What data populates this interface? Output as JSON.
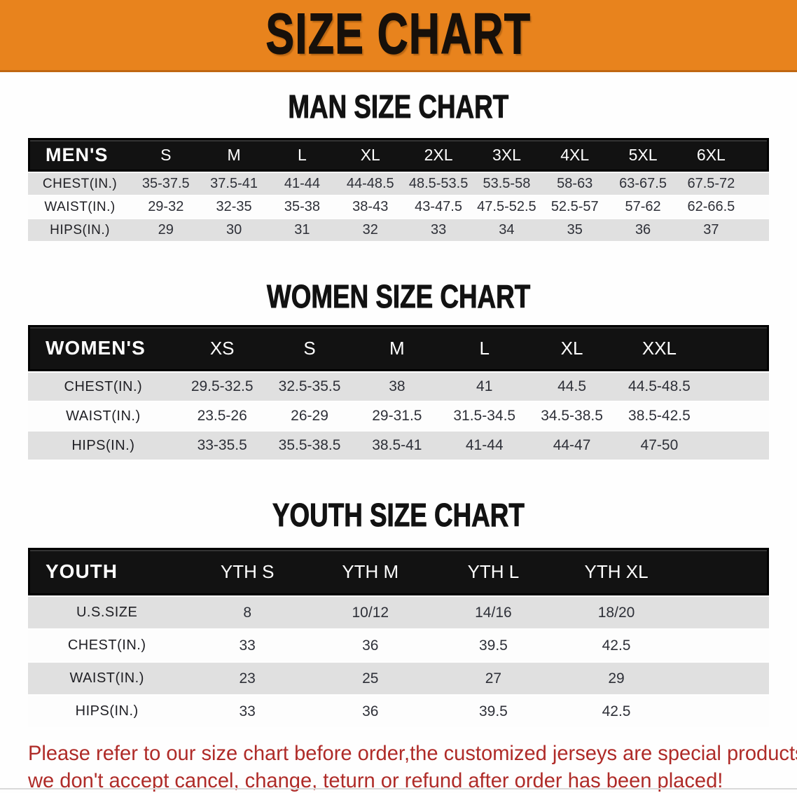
{
  "banner": {
    "title": "SIZE CHART",
    "bg_color": "#E8831D",
    "text_color": "#17100A"
  },
  "sections": [
    {
      "heading": "MAN SIZE CHART",
      "table": {
        "label_header": "MEN'S",
        "columns": [
          "S",
          "M",
          "L",
          "XL",
          "2XL",
          "3XL",
          "4XL",
          "5XL",
          "6XL"
        ],
        "rows": [
          {
            "label": "CHEST(IN.)",
            "values": [
              "35-37.5",
              "37.5-41",
              "41-44",
              "44-48.5",
              "48.5-53.5",
              "53.5-58",
              "58-63",
              "63-67.5",
              "67.5-72"
            ]
          },
          {
            "label": "WAIST(IN.)",
            "values": [
              "29-32",
              "32-35",
              "35-38",
              "38-43",
              "43-47.5",
              "47.5-52.5",
              "52.5-57",
              "57-62",
              "62-66.5"
            ]
          },
          {
            "label": "HIPS(IN.)",
            "values": [
              "29",
              "30",
              "31",
              "32",
              "33",
              "34",
              "35",
              "36",
              "37"
            ]
          }
        ]
      }
    },
    {
      "heading": "WOMEN SIZE CHART",
      "table": {
        "label_header": "WOMEN'S",
        "columns": [
          "XS",
          "S",
          "M",
          "L",
          "XL",
          "XXL"
        ],
        "rows": [
          {
            "label": "CHEST(IN.)",
            "values": [
              "29.5-32.5",
              "32.5-35.5",
              "38",
              "41",
              "44.5",
              "44.5-48.5"
            ]
          },
          {
            "label": "WAIST(IN.)",
            "values": [
              "23.5-26",
              "26-29",
              "29-31.5",
              "31.5-34.5",
              "34.5-38.5",
              "38.5-42.5"
            ]
          },
          {
            "label": "HIPS(IN.)",
            "values": [
              "33-35.5",
              "35.5-38.5",
              "38.5-41",
              "41-44",
              "44-47",
              "47-50"
            ]
          }
        ]
      }
    },
    {
      "heading": "YOUTH SIZE CHART",
      "table": {
        "label_header": "YOUTH",
        "columns": [
          "YTH S",
          "YTH M",
          "YTH L",
          "YTH XL"
        ],
        "rows": [
          {
            "label": "U.S.SIZE",
            "values": [
              "8",
              "10/12",
              "14/16",
              "18/20"
            ]
          },
          {
            "label": "CHEST(IN.)",
            "values": [
              "33",
              "36",
              "39.5",
              "42.5"
            ]
          },
          {
            "label": "WAIST(IN.)",
            "values": [
              "23",
              "25",
              "27",
              "29"
            ]
          },
          {
            "label": "HIPS(IN.)",
            "values": [
              "33",
              "36",
              "39.5",
              "42.5"
            ]
          }
        ]
      }
    }
  ],
  "disclaimer": {
    "line1": "Please refer to our size chart before order,the customized jerseys are special products,",
    "line2": "we don't accept cancel, change, teturn or refund after order has been placed!",
    "text_color": "#AF2B28"
  },
  "colors": {
    "banner_orange": "#E8831D",
    "banner_border": "#C06712",
    "header_band": "#121212",
    "row_stripe_gray": "#E0E0E0",
    "row_stripe_white": "#FDFDFD",
    "disclaimer_red": "#AF2B28"
  }
}
